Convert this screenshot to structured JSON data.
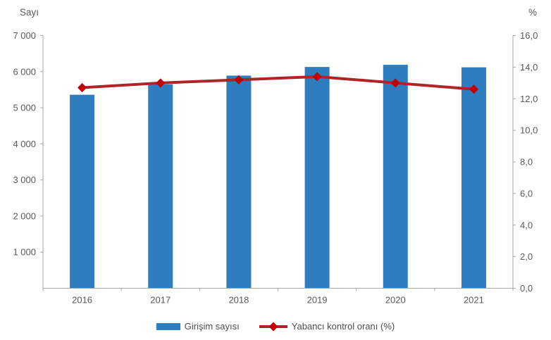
{
  "chart_data": {
    "type": "bar+line",
    "categories": [
      "2016",
      "2017",
      "2018",
      "2019",
      "2020",
      "2021"
    ],
    "series": [
      {
        "name": "Girişim sayısı",
        "chart_type": "bar",
        "axis": "left",
        "color": "#2E7DBE",
        "values": [
          5360,
          5650,
          5890,
          6130,
          6190,
          6120
        ]
      },
      {
        "name": "Yabancı kontrol oranı (%)",
        "chart_type": "line",
        "axis": "right",
        "color": "#B02327",
        "marker": "diamond",
        "marker_color": "#C00000",
        "values": [
          12.7,
          13.0,
          13.2,
          13.4,
          13.0,
          12.6
        ]
      }
    ],
    "left_axis": {
      "title": "Sayı",
      "min": 0,
      "max": 7000,
      "tick_step": 1000,
      "tick_labels": [
        "1 000",
        "2 000",
        "3 000",
        "4 000",
        "5 000",
        "6 000",
        "7 000"
      ]
    },
    "right_axis": {
      "title": "%",
      "min": 0,
      "max": 16,
      "tick_step": 2,
      "tick_labels": [
        "0,0",
        "2,0",
        "4,0",
        "6,0",
        "8,0",
        "10,0",
        "12,0",
        "14,0",
        "16,0"
      ]
    },
    "grid": false,
    "legend_position": "bottom",
    "axis_color": "#A6A6A6",
    "text_color": "#595959"
  }
}
